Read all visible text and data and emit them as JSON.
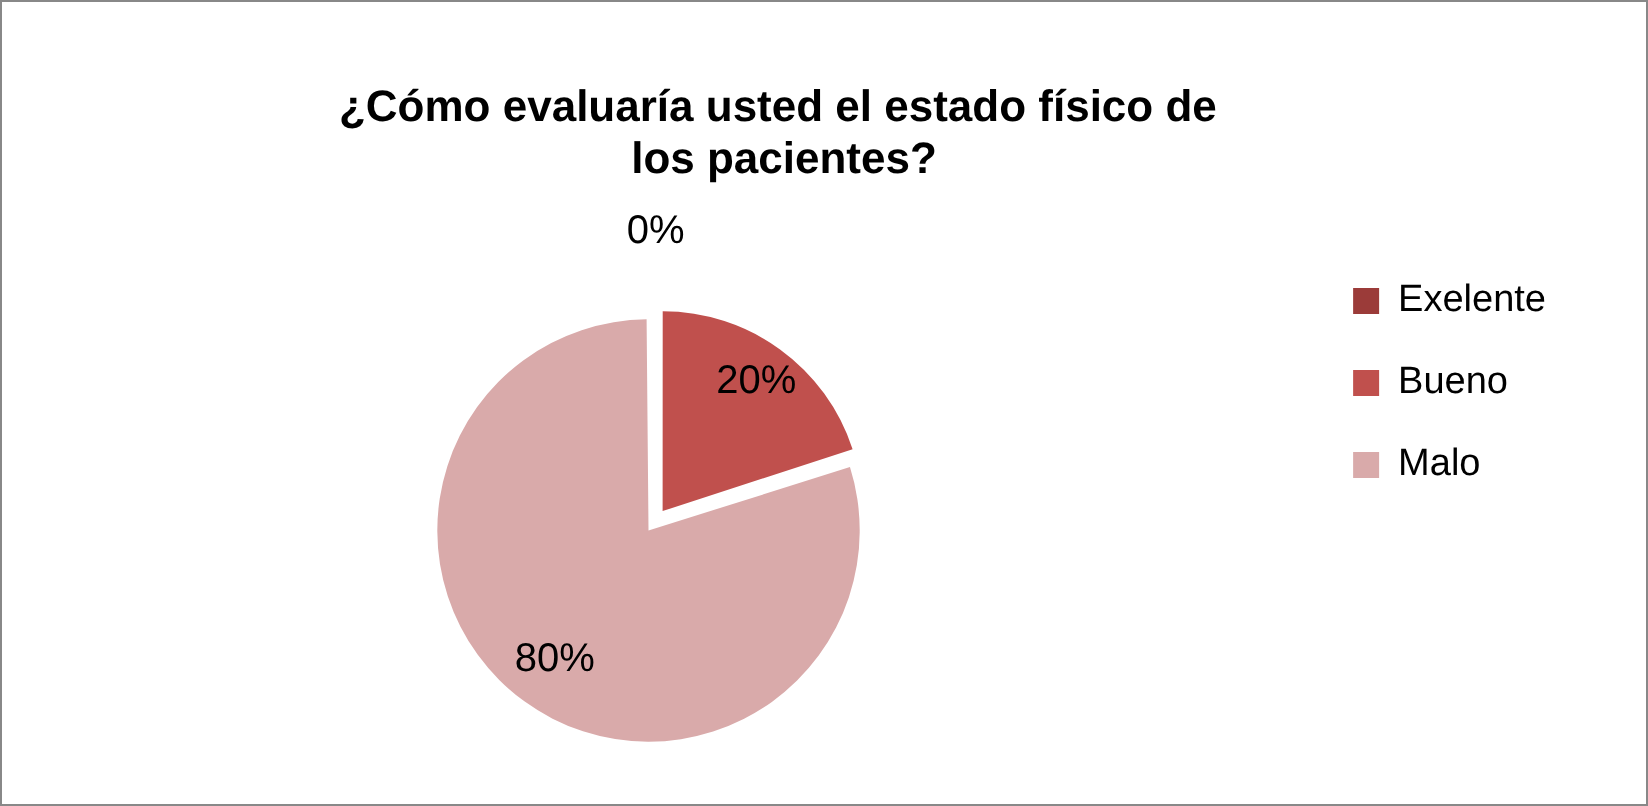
{
  "chart_data": {
    "type": "pie",
    "title": "¿Cómo evaluaría usted el estado físico de  los pacientes?",
    "categories": [
      "Exelente",
      "Bueno",
      "Malo"
    ],
    "values": [
      0,
      20,
      80
    ],
    "colors": [
      "#9b3b39",
      "#c0504d",
      "#d9aaaa"
    ],
    "value_labels": [
      "0%",
      "20%",
      "80%"
    ],
    "legend": "right"
  }
}
